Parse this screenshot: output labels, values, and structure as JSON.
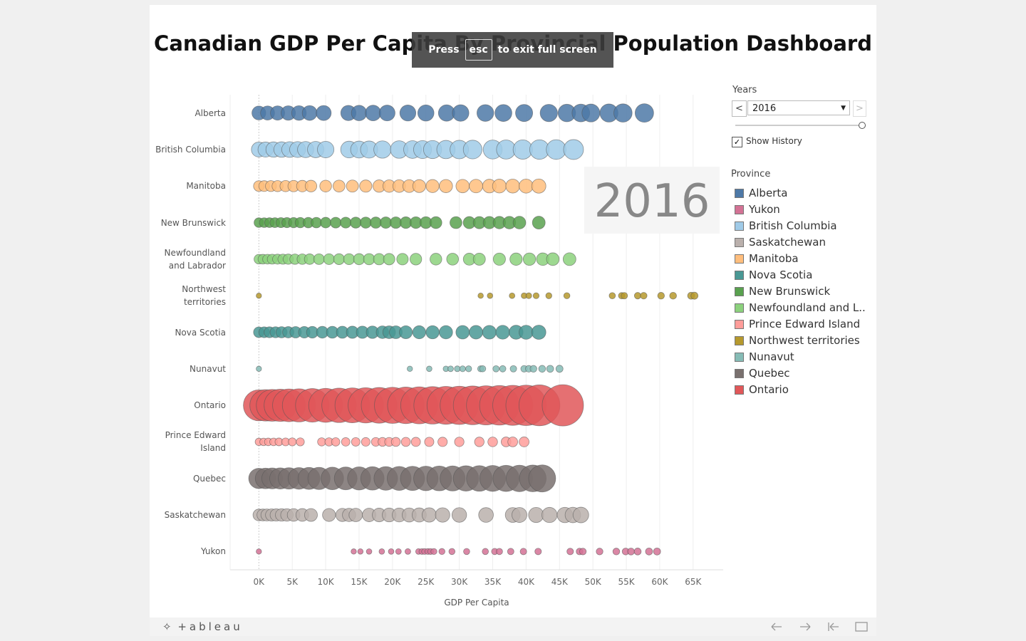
{
  "chart_data": {
    "type": "scatter",
    "title": "Canadian GDP Per Capita By Provincial Population Dashboard",
    "x_label": "GDP Per Capita",
    "big_year": "2016",
    "xlim": [
      -4300,
      69500
    ],
    "xticks": [
      {
        "value": 0,
        "label": "0K"
      },
      {
        "value": 5000,
        "label": "5K"
      },
      {
        "value": 10000,
        "label": "10K"
      },
      {
        "value": 15000,
        "label": "15K"
      },
      {
        "value": 20000,
        "label": "20K"
      },
      {
        "value": 25000,
        "label": "25K"
      },
      {
        "value": 30000,
        "label": "30K"
      },
      {
        "value": 35000,
        "label": "35K"
      },
      {
        "value": 40000,
        "label": "40K"
      },
      {
        "value": 45000,
        "label": "45K"
      },
      {
        "value": 50000,
        "label": "50K"
      },
      {
        "value": 55000,
        "label": "55K"
      },
      {
        "value": 60000,
        "label": "60K"
      },
      {
        "value": 65000,
        "label": "65K"
      }
    ],
    "grid": true,
    "series": [
      {
        "name": "Alberta",
        "color": "#4e79a7",
        "values": [
          0,
          1300,
          2800,
          4400,
          6000,
          7600,
          9700,
          13400,
          15000,
          17100,
          19200,
          22300,
          25000,
          28100,
          30200,
          33900,
          36600,
          39700,
          43400,
          46100,
          48200,
          49700,
          52400,
          54500,
          57700
        ]
      },
      {
        "name": "British Columbia",
        "color": "#a0cbe8",
        "values": [
          0,
          1000,
          2200,
          3400,
          4600,
          5800,
          7000,
          8500,
          10000,
          13500,
          15000,
          16500,
          18500,
          21000,
          23000,
          24500,
          26000,
          28000,
          30000,
          32000,
          35000,
          37000,
          39500,
          42000,
          44500,
          47100
        ]
      },
      {
        "name": "Manitoba",
        "color": "#ffbe7d",
        "values": [
          0,
          800,
          1800,
          2800,
          4000,
          5200,
          6500,
          7800,
          10000,
          12000,
          14000,
          16000,
          18000,
          19500,
          21000,
          22500,
          24000,
          26000,
          28000,
          30500,
          32500,
          34500,
          36000,
          38000,
          40000,
          41900
        ]
      },
      {
        "name": "New Brunswick",
        "color": "#59a14f",
        "values": [
          0,
          800,
          1600,
          2400,
          3300,
          4200,
          5200,
          6200,
          7400,
          8600,
          10000,
          11500,
          13000,
          14500,
          16000,
          17500,
          19000,
          20500,
          22000,
          23500,
          25000,
          26500,
          29500,
          31500,
          33000,
          34500,
          36000,
          37500,
          39000,
          41900
        ]
      },
      {
        "name": "Newfoundland and Labrador",
        "color": "#8cd17d",
        "values": [
          0,
          600,
          1300,
          2000,
          2800,
          3600,
          4400,
          5400,
          6500,
          7600,
          9000,
          10500,
          12000,
          13500,
          15000,
          16500,
          18000,
          19500,
          21500,
          23500,
          26500,
          29000,
          31500,
          33000,
          36000,
          38500,
          40500,
          42500,
          44000,
          46500
        ]
      },
      {
        "name": "Northwest territories",
        "color": "#b6992d",
        "values": [
          0,
          33200,
          34600,
          37900,
          39700,
          40400,
          41500,
          43400,
          46100,
          52900,
          54300,
          54700,
          56700,
          57600,
          60200,
          62000,
          64700,
          65200
        ]
      },
      {
        "name": "Nova Scotia",
        "color": "#499894",
        "values": [
          0,
          800,
          1600,
          2500,
          3400,
          4400,
          5500,
          6800,
          8000,
          9500,
          11000,
          12500,
          14000,
          15500,
          17000,
          18500,
          19500,
          20500,
          22000,
          24000,
          26000,
          28000,
          30500,
          32500,
          34500,
          36500,
          38500,
          40000,
          41900
        ]
      },
      {
        "name": "Nunavut",
        "color": "#86bcb6",
        "values": [
          0,
          22600,
          25500,
          28000,
          28700,
          29700,
          30500,
          31400,
          33200,
          33500,
          35500,
          36500,
          38100,
          39700,
          40400,
          41100,
          42400,
          43600,
          45000
        ]
      },
      {
        "name": "Ontario",
        "color": "#e15759",
        "values": [
          0,
          1000,
          2000,
          3200,
          4500,
          6000,
          8000,
          10000,
          12000,
          14000,
          16000,
          18000,
          20000,
          22000,
          24000,
          26000,
          28000,
          30000,
          32000,
          34000,
          36000,
          38000,
          40000,
          42000,
          45500
        ]
      },
      {
        "name": "Prince Edward Island",
        "color": "#ff9d9a",
        "values": [
          0,
          700,
          1400,
          2200,
          3000,
          4000,
          5000,
          6200,
          9400,
          10500,
          11500,
          13000,
          14500,
          16000,
          17500,
          18500,
          19500,
          20500,
          22000,
          23500,
          25500,
          27500,
          30000,
          33000,
          35000,
          37000,
          38000,
          39700
        ]
      },
      {
        "name": "Quebec",
        "color": "#79706e",
        "values": [
          0,
          1000,
          2000,
          3200,
          4500,
          6000,
          7500,
          9000,
          11000,
          13000,
          15000,
          17000,
          19000,
          21000,
          23000,
          25000,
          27000,
          29000,
          31000,
          33000,
          35000,
          37000,
          39000,
          41000,
          42400
        ]
      },
      {
        "name": "Saskatchewan",
        "color": "#bab0ac",
        "values": [
          0,
          600,
          1200,
          1900,
          2600,
          3400,
          4200,
          5200,
          6500,
          7800,
          10500,
          12500,
          13500,
          14500,
          16500,
          18000,
          19500,
          21000,
          22500,
          24000,
          25500,
          27500,
          30000,
          34000,
          38000,
          39000,
          41500,
          43500,
          45800,
          47000,
          48200
        ]
      },
      {
        "name": "Yukon",
        "color": "#d37295",
        "values": [
          0,
          14200,
          15200,
          16500,
          18400,
          19800,
          20900,
          22300,
          23900,
          24400,
          24800,
          25300,
          25700,
          26200,
          27400,
          28900,
          31100,
          33900,
          35300,
          36000,
          37700,
          39600,
          41800,
          46600,
          48000,
          48500,
          51000,
          53500,
          54900,
          55700,
          56700,
          58400,
          59600
        ]
      }
    ],
    "legend": {
      "title": "Province",
      "items": [
        {
          "label": "Alberta",
          "color": "#4e79a7"
        },
        {
          "label": "Yukon",
          "color": "#d37295"
        },
        {
          "label": "British Columbia",
          "color": "#a0cbe8"
        },
        {
          "label": "Saskatchewan",
          "color": "#bab0ac"
        },
        {
          "label": "Manitoba",
          "color": "#ffbe7d"
        },
        {
          "label": "Nova Scotia",
          "color": "#499894"
        },
        {
          "label": "New Brunswick",
          "color": "#59a14f"
        },
        {
          "label": "Newfoundland and L..",
          "color": "#8cd17d"
        },
        {
          "label": "Prince Edward Island",
          "color": "#ff9d9a"
        },
        {
          "label": "Northwest territories",
          "color": "#b6992d"
        },
        {
          "label": "Nunavut",
          "color": "#86bcb6"
        },
        {
          "label": "Quebec",
          "color": "#79706e"
        },
        {
          "label": "Ontario",
          "color": "#e15759"
        }
      ]
    }
  },
  "controls": {
    "years_label": "Years",
    "year_value": "2016",
    "show_history": "Show History"
  },
  "overlay": {
    "press": "Press",
    "key": "esc",
    "rest": "to exit full screen"
  },
  "footer": {
    "brand": "+ableau"
  }
}
